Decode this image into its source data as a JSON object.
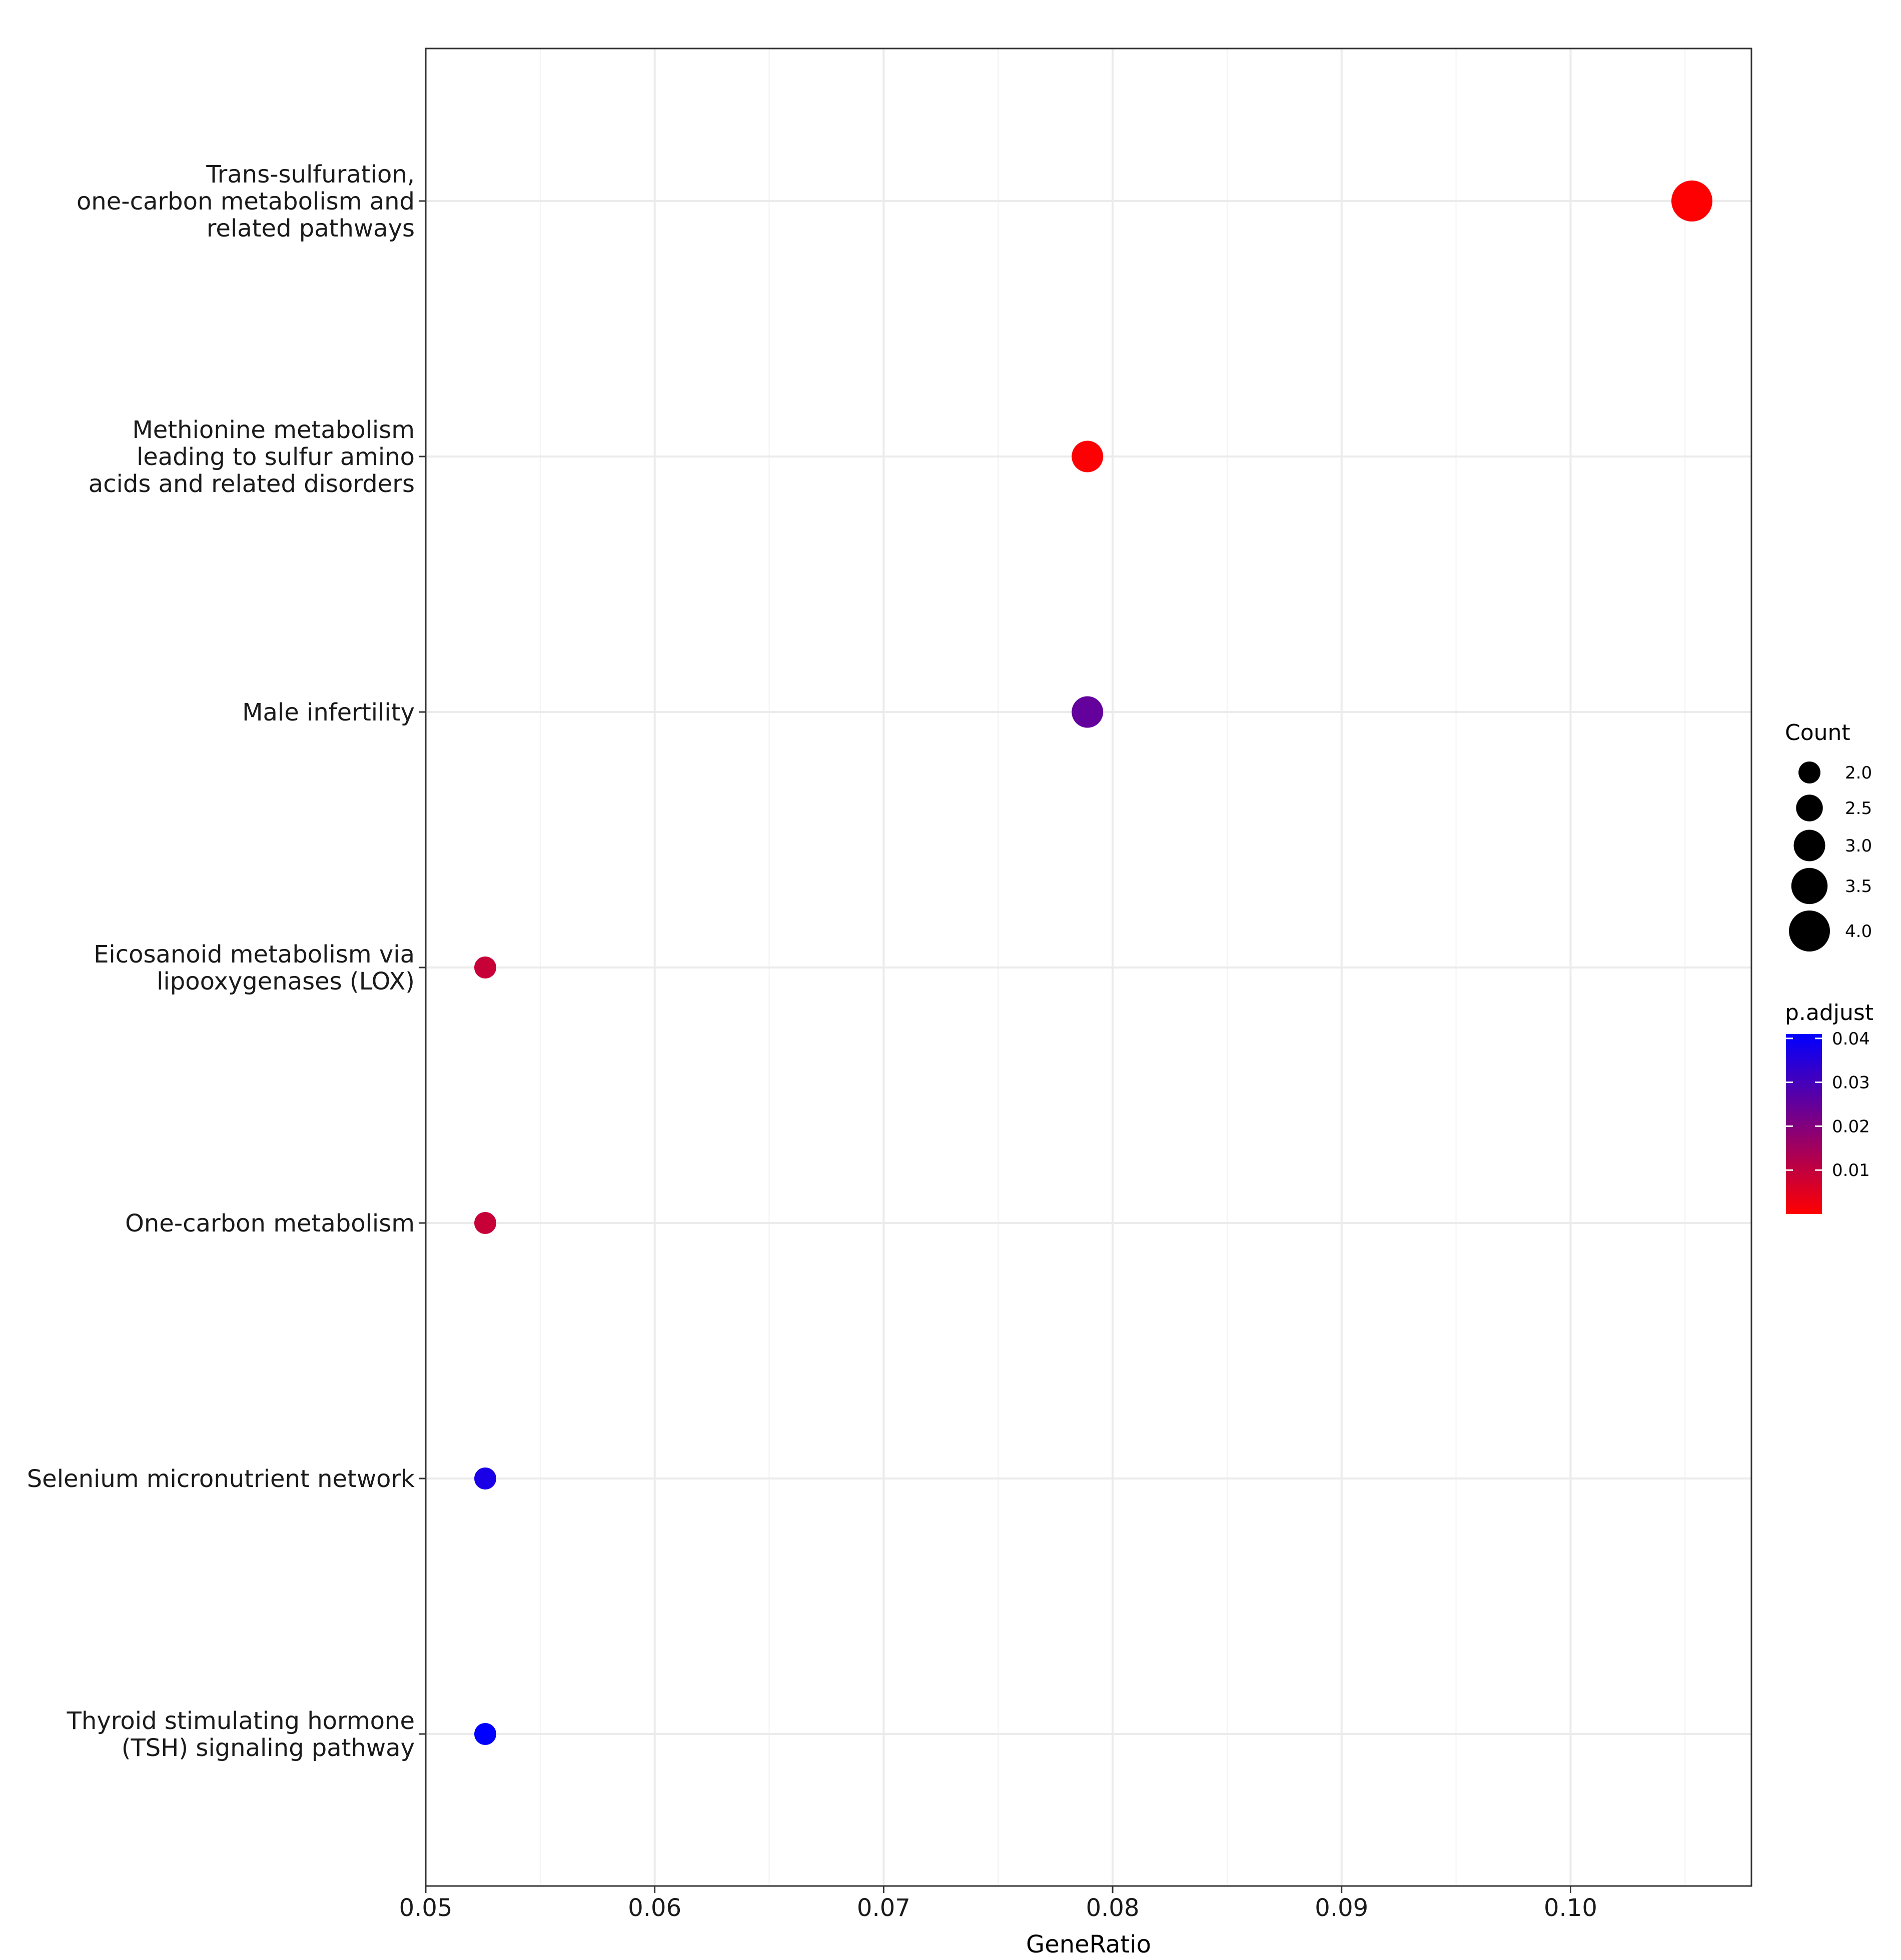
{
  "chart_data": {
    "type": "scatter",
    "xlabel": "GeneRatio",
    "ylabel": "",
    "xlim": [
      0.05,
      0.1079
    ],
    "x_ticks": [
      "0.05",
      "0.06",
      "0.07",
      "0.08",
      "0.09",
      "0.10"
    ],
    "grid": true,
    "legend_position": "right",
    "points": [
      {
        "label": "Trans-sulfuration,\none-carbon metabolism and\nrelated pathways",
        "x": 0.1053,
        "count": 4,
        "p_adjust": 0.0001
      },
      {
        "label": "Methionine metabolism\nleading to sulfur amino\nacids and related disorders",
        "x": 0.0789,
        "count": 3,
        "p_adjust": 0.0005
      },
      {
        "label": "Male infertility",
        "x": 0.0789,
        "count": 3,
        "p_adjust": 0.025
      },
      {
        "label": "Eicosanoid metabolism via\nlipooxygenases (LOX)",
        "x": 0.0526,
        "count": 2,
        "p_adjust": 0.009
      },
      {
        "label": "One-carbon metabolism",
        "x": 0.0526,
        "count": 2,
        "p_adjust": 0.009
      },
      {
        "label": "Selenium micronutrient network",
        "x": 0.0526,
        "count": 2,
        "p_adjust": 0.037
      },
      {
        "label": "Thyroid stimulating hormone\n(TSH) signaling pathway",
        "x": 0.0526,
        "count": 2,
        "p_adjust": 0.041
      }
    ],
    "size_legend": {
      "title": "Count",
      "values": [
        2.0,
        2.5,
        3.0,
        3.5,
        4.0
      ],
      "labels": [
        "2.0",
        "2.5",
        "3.0",
        "3.5",
        "4.0"
      ]
    },
    "color_legend": {
      "title": "p.adjust",
      "range": [
        0.0,
        0.041
      ],
      "low_color": "#FF0000",
      "high_color": "#0000FF",
      "ticks": [
        0.01,
        0.02,
        0.03,
        0.04
      ],
      "tick_labels": [
        "0.01",
        "0.02",
        "0.03",
        "0.04"
      ]
    }
  }
}
